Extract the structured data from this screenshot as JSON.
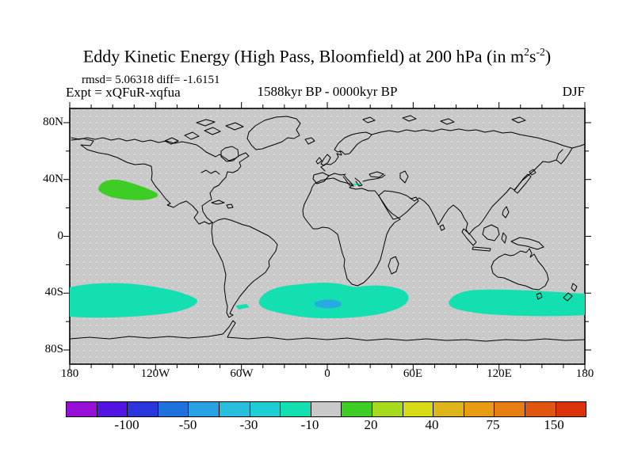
{
  "title": {
    "prefix": "Eddy Kinetic Energy (High Pass, Bloomfield) at 200 hPa (in m",
    "sup1": "2",
    "mid": "s",
    "sup2": "-2",
    "suffix": ")"
  },
  "header": {
    "stats": "rmsd= 5.06318 diff= -1.6151",
    "expt": "Expt = xQFuR-xqfua",
    "period": "1588kyr BP - 0000kyr BP",
    "season": "DJF"
  },
  "axes": {
    "lat": [
      "80N",
      "40N",
      "0",
      "40S",
      "80S"
    ],
    "lon": [
      "180",
      "120W",
      "60W",
      "0",
      "60E",
      "120E",
      "180"
    ]
  },
  "colorbar": {
    "labels": [
      "-100",
      "-50",
      "-30",
      "-10",
      "20",
      "40",
      "75",
      "150"
    ],
    "colors": [
      "#970FD6",
      "#5214E2",
      "#2A35DC",
      "#1E72DE",
      "#28A2E2",
      "#28BEDC",
      "#1FCDD4",
      "#13DFB0",
      "#C9C9C9",
      "#3DCD24",
      "#A5DB1C",
      "#D7DB18",
      "#DDB41A",
      "#E79C12",
      "#E77E11",
      "#E0560E",
      "#DA330B"
    ],
    "levels": [
      -150,
      -100,
      -75,
      -50,
      -40,
      -30,
      -20,
      -10,
      10,
      20,
      30,
      40,
      50,
      75,
      100,
      150
    ]
  },
  "map_colors": {
    "background": "#C9C9C9",
    "coastline": "#000000",
    "anomaly_neg10": "#13DFB0",
    "anomaly_pos20": "#3DCD24",
    "anomaly_neg30": "#27A9E1"
  },
  "chart_data": {
    "type": "heatmap",
    "subtype": "filled-contour difference map on world coastline background (equirectangular)",
    "title": "Eddy Kinetic Energy (High Pass, Bloomfield) at 200 hPa (in m2 s-2)",
    "stats": {
      "rmsd": 5.06318,
      "diff": -1.6151
    },
    "experiment": "xQFuR-xqfua",
    "period": "1588kyr BP - 0000kyr BP",
    "season": "DJF",
    "x_axis": {
      "label": "longitude",
      "range": [
        -180,
        180
      ],
      "ticks": [
        "180",
        "120W",
        "60W",
        "0",
        "60E",
        "120E",
        "180"
      ],
      "minor_tick_deg": 15
    },
    "y_axis": {
      "label": "latitude",
      "range": [
        -90,
        90
      ],
      "ticks": [
        "80N",
        "40N",
        "0",
        "40S",
        "80S"
      ],
      "minor_tick_deg": 20
    },
    "contour_levels": [
      -150,
      -100,
      -75,
      -50,
      -40,
      -30,
      -20,
      -10,
      10,
      20,
      30,
      40,
      50,
      75,
      100,
      150
    ],
    "background_band": "-10 to 10 (gray) over most of the globe",
    "regions": [
      {
        "band": "10 to 20",
        "color": "green",
        "location": "North Pacific near 145W, 28N-37N"
      },
      {
        "band": "-20 to -10",
        "color": "turquoise",
        "location": "South Pacific from 180 to ~142W, 35S-55S"
      },
      {
        "band": "-20 to -10",
        "color": "turquoise",
        "location": "tiny patch east of southern South America ~62W, 51S"
      },
      {
        "band": "-20 to -10",
        "color": "turquoise",
        "location": "South Atlantic to Indian Ocean, 50W to 57E, 33S-57S"
      },
      {
        "band": "-40 to -30",
        "color": "cyan-blue",
        "location": "small core near 10E, 46S inside the Atlantic band"
      },
      {
        "band": "-20 to -10",
        "color": "turquoise",
        "location": "south of Australia to New Zealand, 133E to 180, 38S-55S"
      },
      {
        "band": "-20 to -10",
        "color": "turquoise",
        "location": "tiny dash near 19E, 36N (Mediterranean)"
      }
    ],
    "legend_position": "horizontal colorbar at bottom"
  }
}
